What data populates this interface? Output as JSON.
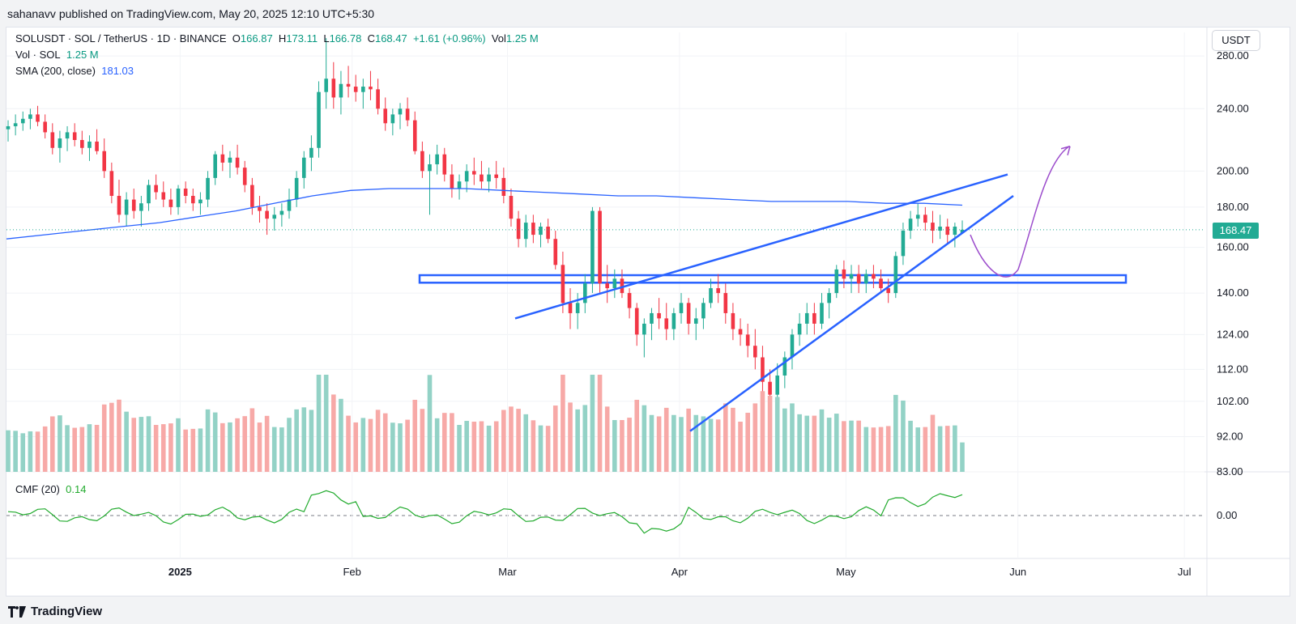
{
  "header": {
    "publisher_text": "sahanavv published on TradingView.com, May 20, 2025 12:10 UTC+5:30"
  },
  "legend": {
    "symbol": "SOLUSDT · SOL / TetherUS · 1D · BINANCE",
    "o_label": "O",
    "o_value": "166.87",
    "h_label": "H",
    "h_value": "173.11",
    "l_label": "L",
    "l_value": "166.78",
    "c_label": "C",
    "c_value": "168.47",
    "change": "+1.61 (+0.96%)",
    "vol_label": "Vol",
    "vol_value": "1.25 M",
    "vol_line_label": "Vol · SOL",
    "vol_line_value": "1.25 M",
    "sma_label": "SMA (200, close)",
    "sma_value": "181.03",
    "cmf_label": "CMF (20)",
    "cmf_value": "0.14"
  },
  "currency_button": "USDT",
  "current_price": "168.47",
  "footer": {
    "brand": "TradingView"
  },
  "colors": {
    "up": "#22ab94",
    "down": "#f23645",
    "sma": "#2962ff",
    "trendline": "#2962ff",
    "cmf": "#22ab2e",
    "projection": "#9c4dcc"
  },
  "chart_data": {
    "type": "candlestick",
    "title": "SOLUSDT · SOL / TetherUS · 1D · BINANCE",
    "y_scale": "log",
    "y_ticks": [
      "280.00",
      "240.00",
      "200.00",
      "180.00",
      "160.00",
      "140.00",
      "124.00",
      "112.00",
      "102.00",
      "92.00",
      "83.00"
    ],
    "x_ticks": [
      "2025",
      "Feb",
      "Mar",
      "Apr",
      "May",
      "Jun",
      "Jul"
    ],
    "ylim": [
      83,
      300
    ],
    "series": [
      {
        "name": "Price",
        "x_start": "2024-12-01",
        "ohlc": [
          [
            226,
            232,
            218,
            228
          ],
          [
            228,
            236,
            222,
            230
          ],
          [
            230,
            238,
            225,
            233
          ],
          [
            233,
            240,
            226,
            236
          ],
          [
            236,
            242,
            228,
            231
          ],
          [
            231,
            236,
            220,
            224
          ],
          [
            224,
            230,
            210,
            214
          ],
          [
            214,
            225,
            205,
            220
          ],
          [
            220,
            228,
            212,
            224
          ],
          [
            224,
            230,
            215,
            219
          ],
          [
            219,
            225,
            210,
            214
          ],
          [
            214,
            222,
            206,
            218
          ],
          [
            218,
            226,
            210,
            212
          ],
          [
            212,
            220,
            196,
            200
          ],
          [
            200,
            205,
            182,
            186
          ],
          [
            186,
            195,
            172,
            176
          ],
          [
            176,
            188,
            170,
            184
          ],
          [
            184,
            190,
            174,
            178
          ],
          [
            178,
            186,
            170,
            182
          ],
          [
            182,
            195,
            178,
            192
          ],
          [
            192,
            198,
            184,
            188
          ],
          [
            188,
            194,
            180,
            184
          ],
          [
            184,
            190,
            176,
            180
          ],
          [
            180,
            192,
            176,
            190
          ],
          [
            190,
            194,
            182,
            186
          ],
          [
            186,
            190,
            178,
            182
          ],
          [
            182,
            188,
            176,
            184
          ],
          [
            184,
            200,
            180,
            196
          ],
          [
            196,
            212,
            192,
            210
          ],
          [
            210,
            216,
            200,
            205
          ],
          [
            205,
            212,
            196,
            208
          ],
          [
            208,
            216,
            198,
            202
          ],
          [
            202,
            206,
            188,
            192
          ],
          [
            192,
            196,
            176,
            180
          ],
          [
            180,
            186,
            172,
            178
          ],
          [
            178,
            182,
            166,
            174
          ],
          [
            174,
            180,
            168,
            176
          ],
          [
            176,
            182,
            170,
            178
          ],
          [
            178,
            190,
            174,
            184
          ],
          [
            184,
            200,
            180,
            196
          ],
          [
            196,
            212,
            190,
            208
          ],
          [
            208,
            222,
            200,
            214
          ],
          [
            214,
            260,
            208,
            252
          ],
          [
            252,
            295,
            240,
            262
          ],
          [
            262,
            275,
            240,
            248
          ],
          [
            248,
            268,
            236,
            258
          ],
          [
            258,
            272,
            248,
            256
          ],
          [
            256,
            265,
            245,
            252
          ],
          [
            252,
            262,
            240,
            256
          ],
          [
            256,
            268,
            246,
            254
          ],
          [
            254,
            262,
            236,
            240
          ],
          [
            240,
            248,
            225,
            230
          ],
          [
            230,
            240,
            222,
            236
          ],
          [
            236,
            244,
            226,
            240
          ],
          [
            240,
            248,
            228,
            232
          ],
          [
            232,
            238,
            210,
            212
          ],
          [
            212,
            218,
            196,
            200
          ],
          [
            200,
            210,
            176,
            204
          ],
          [
            204,
            216,
            198,
            210
          ],
          [
            210,
            214,
            194,
            198
          ],
          [
            198,
            204,
            185,
            190
          ],
          [
            190,
            198,
            184,
            194
          ],
          [
            194,
            204,
            188,
            200
          ],
          [
            200,
            208,
            192,
            198
          ],
          [
            198,
            206,
            190,
            194
          ],
          [
            194,
            202,
            188,
            198
          ],
          [
            198,
            206,
            190,
            196
          ],
          [
            196,
            202,
            182,
            186
          ],
          [
            186,
            190,
            170,
            174
          ],
          [
            174,
            178,
            160,
            164
          ],
          [
            164,
            176,
            160,
            172
          ],
          [
            172,
            176,
            162,
            166
          ],
          [
            166,
            172,
            160,
            170
          ],
          [
            170,
            174,
            162,
            164
          ],
          [
            164,
            168,
            150,
            152
          ],
          [
            152,
            158,
            132,
            136
          ],
          [
            136,
            142,
            126,
            132
          ],
          [
            132,
            140,
            126,
            136
          ],
          [
            136,
            148,
            132,
            144
          ],
          [
            144,
            180,
            140,
            178
          ],
          [
            178,
            180,
            140,
            144
          ],
          [
            144,
            152,
            136,
            142
          ],
          [
            142,
            150,
            138,
            146
          ],
          [
            146,
            150,
            138,
            140
          ],
          [
            140,
            142,
            130,
            134
          ],
          [
            134,
            136,
            120,
            124
          ],
          [
            124,
            130,
            116,
            128
          ],
          [
            128,
            134,
            122,
            132
          ],
          [
            132,
            138,
            126,
            130
          ],
          [
            130,
            136,
            122,
            126
          ],
          [
            126,
            134,
            122,
            132
          ],
          [
            132,
            140,
            128,
            136
          ],
          [
            136,
            138,
            124,
            128
          ],
          [
            128,
            134,
            122,
            130
          ],
          [
            130,
            138,
            126,
            136
          ],
          [
            136,
            146,
            134,
            142
          ],
          [
            142,
            148,
            136,
            140
          ],
          [
            140,
            144,
            128,
            132
          ],
          [
            132,
            136,
            122,
            126
          ],
          [
            126,
            130,
            120,
            124
          ],
          [
            124,
            128,
            116,
            120
          ],
          [
            120,
            126,
            112,
            116
          ],
          [
            116,
            120,
            104,
            108
          ],
          [
            108,
            112,
            98,
            104
          ],
          [
            104,
            114,
            100,
            110
          ],
          [
            110,
            118,
            106,
            116
          ],
          [
            116,
            126,
            112,
            124
          ],
          [
            124,
            132,
            120,
            128
          ],
          [
            128,
            136,
            124,
            132
          ],
          [
            132,
            136,
            124,
            128
          ],
          [
            128,
            140,
            126,
            136
          ],
          [
            136,
            142,
            130,
            140
          ],
          [
            140,
            152,
            138,
            150
          ],
          [
            150,
            154,
            142,
            146
          ],
          [
            146,
            152,
            140,
            148
          ],
          [
            148,
            152,
            140,
            144
          ],
          [
            144,
            150,
            140,
            148
          ],
          [
            148,
            152,
            142,
            146
          ],
          [
            146,
            150,
            140,
            142
          ],
          [
            142,
            146,
            136,
            140
          ],
          [
            140,
            158,
            138,
            156
          ],
          [
            156,
            172,
            152,
            168
          ],
          [
            168,
            178,
            164,
            174
          ],
          [
            174,
            182,
            170,
            176
          ],
          [
            176,
            180,
            168,
            172
          ],
          [
            172,
            178,
            162,
            168
          ],
          [
            168,
            176,
            164,
            170
          ],
          [
            170,
            174,
            162,
            166
          ],
          [
            166,
            172,
            160,
            170
          ],
          [
            166.87,
            173.11,
            166.78,
            168.47
          ]
        ]
      },
      {
        "name": "SMA (200, close)",
        "values_start": "2024-12-01",
        "values": [
          164,
          166,
          168,
          170,
          172,
          175,
          178,
          182,
          186,
          189,
          190,
          190,
          190,
          189,
          188,
          187,
          186,
          186,
          185,
          184,
          183,
          183,
          183,
          182,
          182,
          181.03
        ]
      }
    ],
    "annotations": [
      "horizontal support zone around 145",
      "rising wedge trendlines",
      "projected path dipping to ~145 then rising to ~215"
    ]
  }
}
